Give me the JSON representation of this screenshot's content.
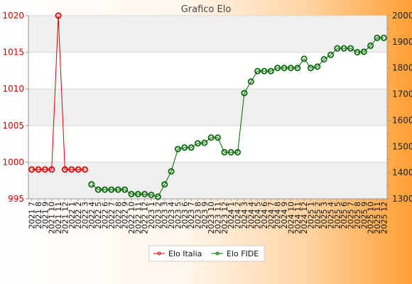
{
  "chart_data": {
    "type": "line",
    "title": "Grafico Elo",
    "x": [
      "2021 7",
      "2021 8",
      "2021 9",
      "2021 10",
      "2021 11",
      "2021 12",
      "2022 1",
      "2022 2",
      "2022 3",
      "2022 4",
      "2022 5",
      "2022 6",
      "2022 7",
      "2022 8",
      "2022 9",
      "2022 10",
      "2022 11",
      "2022 12",
      "2023 1",
      "2023 2",
      "2023 3",
      "2023 4",
      "2023 5",
      "2023 6",
      "2023 7",
      "2023 8",
      "2023 9",
      "2023 10",
      "2023 11",
      "2023 12",
      "2024 1",
      "2024 2",
      "2024 3",
      "2024 4",
      "2024 5",
      "2024 6",
      "2024 7",
      "2024 8",
      "2024 9",
      "2024 10",
      "2024 11",
      "2024 12",
      "2025 1",
      "2025 2",
      "2025 3",
      "2025 4",
      "2025 5",
      "2025 6",
      "2025 7",
      "2025 8",
      "2025 9",
      "2025 10",
      "2025 11",
      "2025 12"
    ],
    "y_left": {
      "ylim": [
        995,
        1020
      ],
      "ticks": [
        995,
        1000,
        1005,
        1010,
        1015,
        1020
      ]
    },
    "y_right": {
      "ylim": [
        1300,
        2000
      ],
      "ticks": [
        1300,
        1400,
        1500,
        1600,
        1700,
        1800,
        1900,
        2000
      ]
    },
    "grid": true,
    "legend_position": "bottom",
    "series": [
      {
        "name": "Elo Italia",
        "axis": "left",
        "color": "#dd0000",
        "values": [
          999,
          999,
          999,
          999,
          1020,
          999,
          999,
          999,
          999,
          null,
          null,
          null,
          null,
          null,
          null,
          null,
          null,
          null,
          null,
          null,
          null,
          null,
          null,
          null,
          null,
          null,
          null,
          null,
          null,
          null,
          null,
          null,
          null,
          null,
          null,
          null,
          null,
          null,
          null,
          null,
          null,
          null,
          null,
          null,
          null,
          null,
          null,
          null,
          null,
          null,
          null,
          null,
          null,
          null
        ]
      },
      {
        "name": "Elo FIDE",
        "axis": "right",
        "color": "#006600",
        "values": [
          null,
          null,
          null,
          null,
          null,
          null,
          null,
          null,
          null,
          1355,
          1335,
          1335,
          1335,
          1335,
          1335,
          1318,
          1318,
          1318,
          1315,
          1308,
          1355,
          1405,
          1490,
          1496,
          1496,
          1512,
          1514,
          1534,
          1534,
          1478,
          1478,
          1478,
          1704,
          1748,
          1788,
          1788,
          1788,
          1800,
          1800,
          1800,
          1800,
          1835,
          1800,
          1805,
          1833,
          1850,
          1875,
          1875,
          1875,
          1860,
          1862,
          1885,
          1915,
          1915
        ]
      }
    ]
  }
}
